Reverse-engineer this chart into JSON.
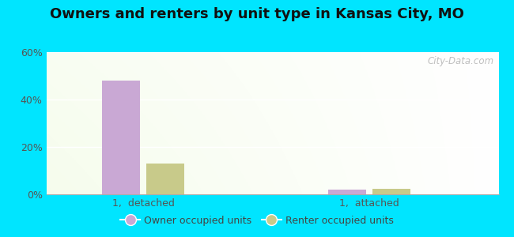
{
  "title": "Owners and renters by unit type in Kansas City, MO",
  "groups": [
    "1,  detached",
    "1,  attached"
  ],
  "owner_values": [
    48.0,
    2.0
  ],
  "renter_values": [
    13.0,
    2.5
  ],
  "owner_color": "#c9a8d4",
  "renter_color": "#c8ca8a",
  "bar_width": 0.35,
  "ylim": [
    0,
    60
  ],
  "yticks": [
    0,
    20,
    40,
    60
  ],
  "ytick_labels": [
    "0%",
    "20%",
    "40%",
    "60%"
  ],
  "bg_color_outer": "#00e5ff",
  "legend_owner_label": "Owner occupied units",
  "legend_renter_label": "Renter occupied units",
  "watermark": "City-Data.com",
  "title_fontsize": 13,
  "tick_fontsize": 9,
  "group_centers": [
    0.7,
    2.8
  ],
  "xlim": [
    -0.2,
    4.0
  ]
}
